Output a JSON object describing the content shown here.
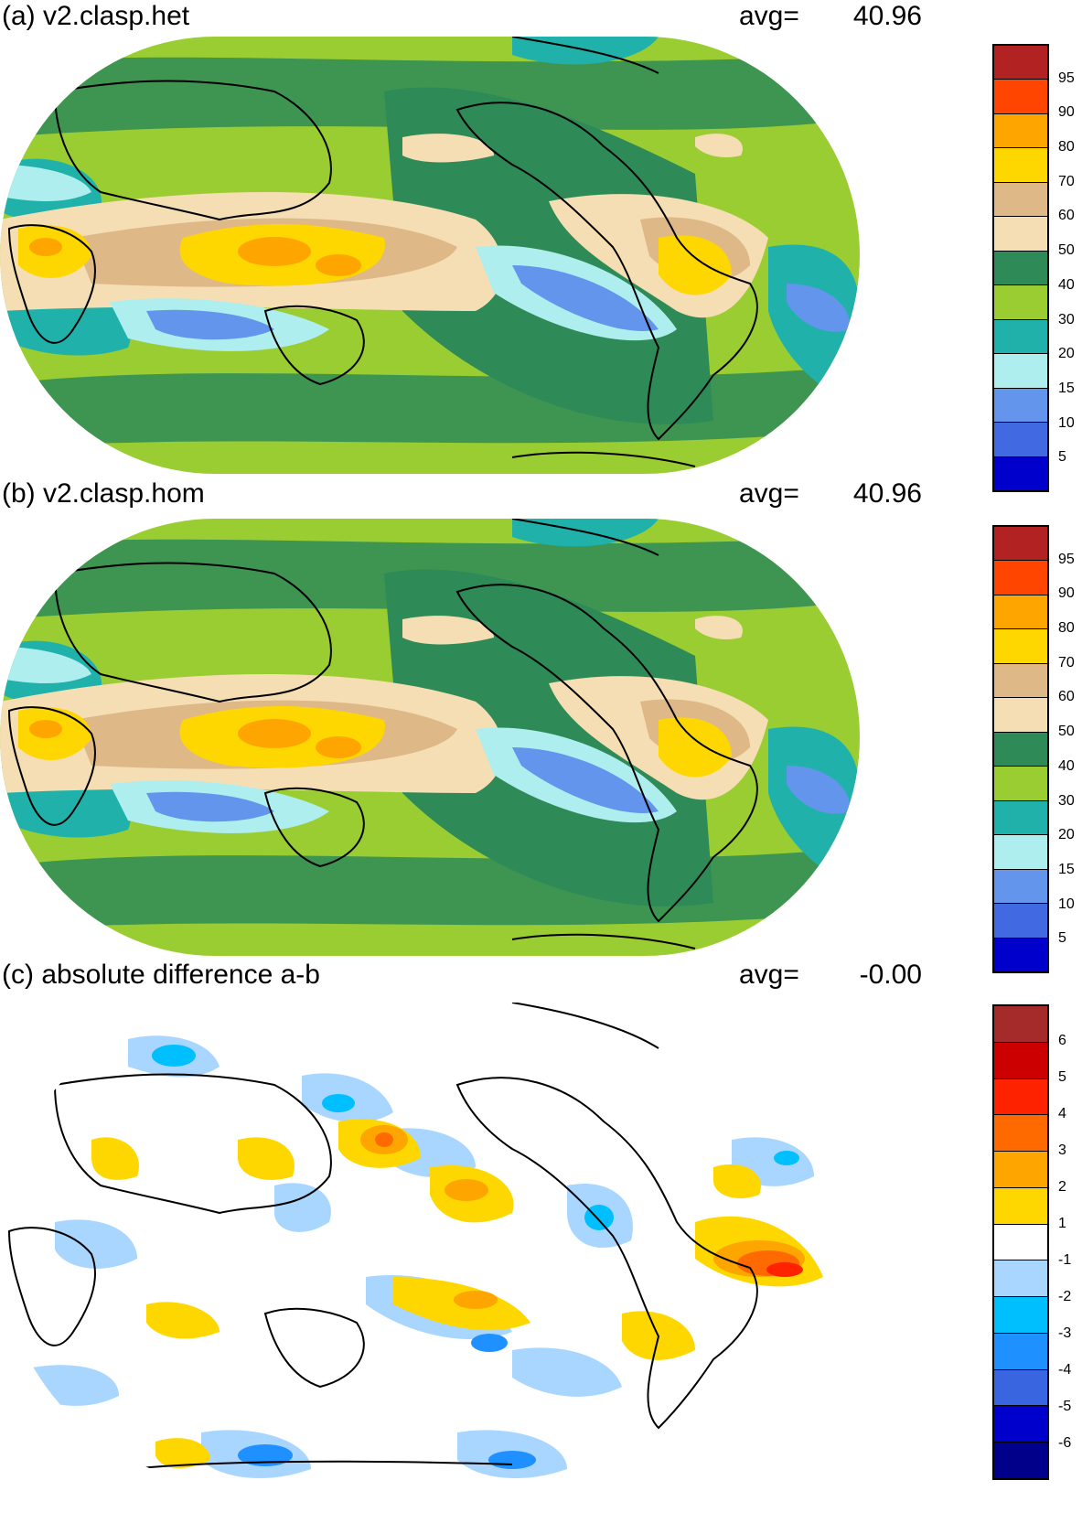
{
  "panels": [
    {
      "id": "a",
      "title": "(a) v2.clasp.het",
      "avg_label": "avg=",
      "avg_value": "40.96",
      "colorbar": {
        "colors": [
          "#b22222",
          "#ff4500",
          "#ffa500",
          "#ffd700",
          "#deb887",
          "#f5deb3",
          "#2e8b57",
          "#9acd32",
          "#20b2aa",
          "#afeeee",
          "#6495ed",
          "#4169e1",
          "#0000cd"
        ],
        "labels": [
          "95",
          "90",
          "80",
          "70",
          "60",
          "50",
          "40",
          "30",
          "20",
          "15",
          "10",
          "5"
        ]
      }
    },
    {
      "id": "b",
      "title": "(b) v2.clasp.hom",
      "avg_label": "avg=",
      "avg_value": "40.96",
      "colorbar": {
        "colors": [
          "#b22222",
          "#ff4500",
          "#ffa500",
          "#ffd700",
          "#deb887",
          "#f5deb3",
          "#2e8b57",
          "#9acd32",
          "#20b2aa",
          "#afeeee",
          "#6495ed",
          "#4169e1",
          "#0000cd"
        ],
        "labels": [
          "95",
          "90",
          "80",
          "70",
          "60",
          "50",
          "40",
          "30",
          "20",
          "15",
          "10",
          "5"
        ]
      }
    },
    {
      "id": "c",
      "title": "(c) absolute difference a-b",
      "avg_label": "avg=",
      "avg_value": "-0.00",
      "colorbar": {
        "colors": [
          "#a52a2a",
          "#cc0000",
          "#ff2200",
          "#ff6a00",
          "#ffa500",
          "#ffd700",
          "#ffffff",
          "#a9d6ff",
          "#00bfff",
          "#1e90ff",
          "#3a65e0",
          "#0000cd",
          "#00008b"
        ],
        "labels": [
          "6",
          "5",
          "4",
          "3",
          "2",
          "1",
          "-1",
          "-2",
          "-3",
          "-4",
          "-5",
          "-6"
        ]
      }
    }
  ]
}
